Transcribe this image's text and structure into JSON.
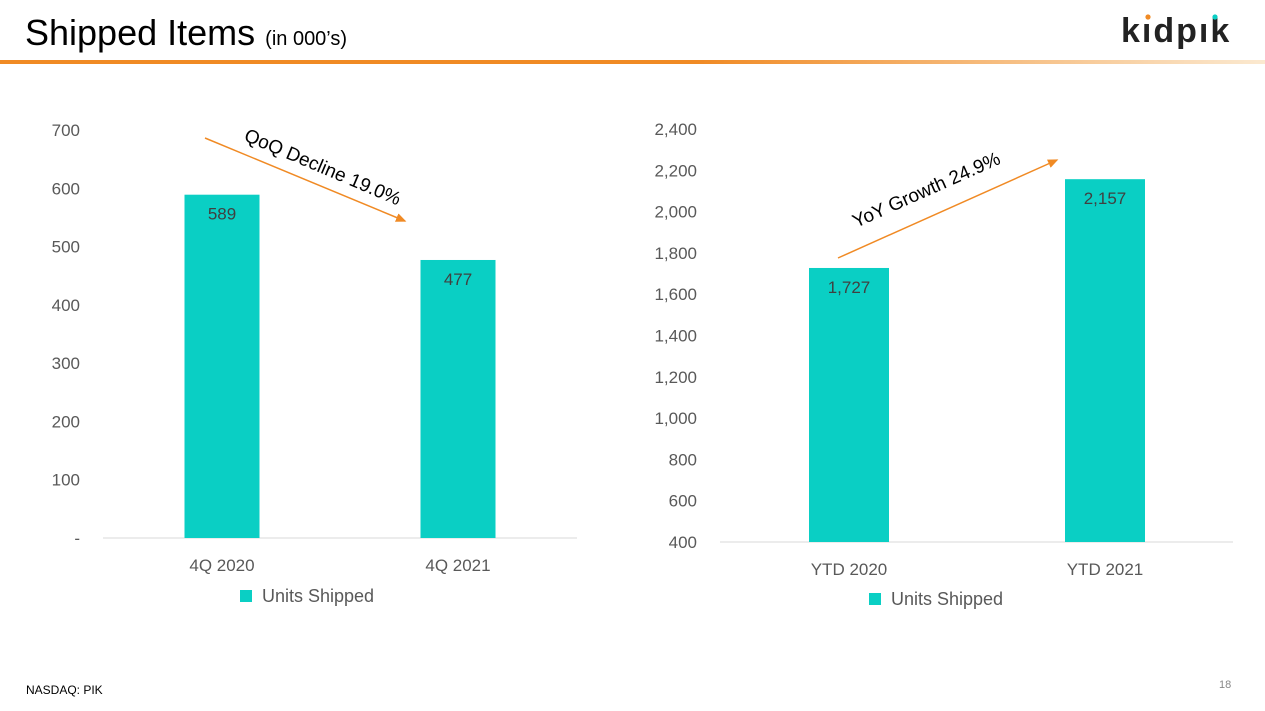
{
  "title": "Shipped Items",
  "title_suffix": "(in 000’s)",
  "logo_text": "kidpik",
  "footer": "NASDAQ: PIK",
  "page_number": "18",
  "colors": {
    "bar": "#0acfc4",
    "accent": "#f08a24"
  },
  "chart_data": [
    {
      "type": "bar",
      "categories": [
        "4Q 2020",
        "4Q 2021"
      ],
      "values": [
        589,
        477
      ],
      "data_labels": [
        "589",
        "477"
      ],
      "ylim": [
        0,
        700
      ],
      "yticks": [
        0,
        100,
        200,
        300,
        400,
        500,
        600,
        700
      ],
      "ytick_labels": [
        "-",
        "100",
        "200",
        "300",
        "400",
        "500",
        "600",
        "700"
      ],
      "legend": "Units Shipped",
      "legend_position": "bottom",
      "annotation": "QoQ Decline 19.0%",
      "grid": false
    },
    {
      "type": "bar",
      "categories": [
        "YTD 2020",
        "YTD 2021"
      ],
      "values": [
        1727,
        2157
      ],
      "data_labels": [
        "1,727",
        "2,157"
      ],
      "ylim": [
        400,
        2400
      ],
      "yticks": [
        400,
        600,
        800,
        1000,
        1200,
        1400,
        1600,
        1800,
        2000,
        2200,
        2400
      ],
      "ytick_labels": [
        "400",
        "600",
        "800",
        "1,000",
        "1,200",
        "1,400",
        "1,600",
        "1,800",
        "2,000",
        "2,200",
        "2,400"
      ],
      "legend": "Units Shipped",
      "legend_position": "bottom",
      "annotation": "YoY Growth 24.9%",
      "grid": false
    }
  ]
}
